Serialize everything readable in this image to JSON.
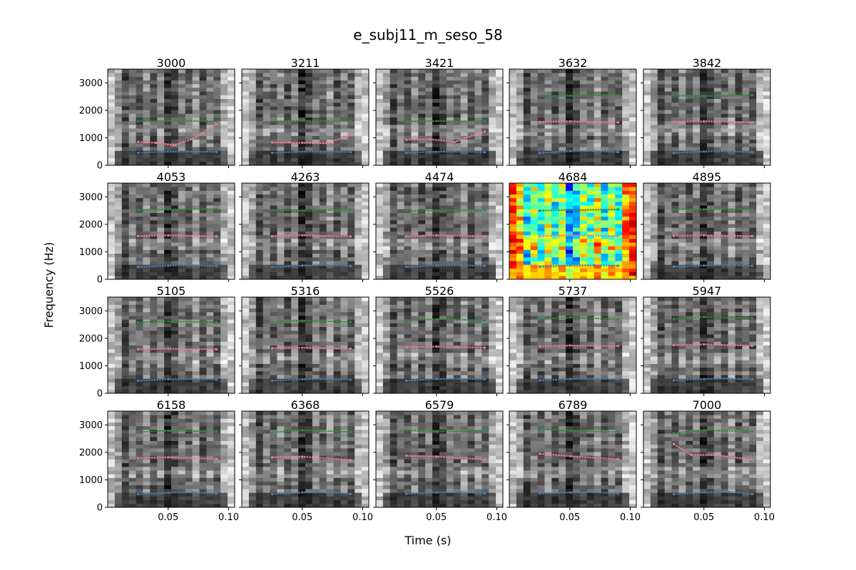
{
  "figure": {
    "title": "e_subj11_m_seso_58"
  },
  "chart_data": {
    "type": "spectrogram-grid",
    "title": "e_subj11_m_seso_58",
    "xlabel": "Time (s)",
    "ylabel": "Frequency (Hz)",
    "xlim": [
      0.0,
      0.105
    ],
    "ylim": [
      0,
      3500
    ],
    "xticks": [
      0.05,
      0.1
    ],
    "xtick_labels": [
      "0.05",
      "0.10"
    ],
    "yticks": [
      0,
      1000,
      2000,
      3000
    ],
    "ytick_labels": [
      "0",
      "1000",
      "2000",
      "3000"
    ],
    "grid": false,
    "rows": 4,
    "cols": 5,
    "highlighted_panel": "4684",
    "colormap_default": "gray",
    "colormap_highlight": "jet",
    "formant_colors": {
      "F1": "#4a7fb5",
      "F2": "#f07a8a",
      "F3": "#2e8b3e"
    },
    "panels": [
      {
        "title": "3000",
        "F1": [
          [
            0.025,
            450
          ],
          [
            0.045,
            490
          ],
          [
            0.065,
            500
          ],
          [
            0.09,
            490
          ]
        ],
        "F2": [
          [
            0.025,
            850
          ],
          [
            0.04,
            820
          ],
          [
            0.055,
            730
          ],
          [
            0.07,
            950
          ],
          [
            0.09,
            1500
          ]
        ],
        "F3": [
          [
            0.025,
            1600
          ],
          [
            0.05,
            1620
          ],
          [
            0.09,
            1600
          ]
        ]
      },
      {
        "title": "3211",
        "F1": [
          [
            0.025,
            450
          ],
          [
            0.045,
            490
          ],
          [
            0.065,
            500
          ],
          [
            0.09,
            480
          ]
        ],
        "F2": [
          [
            0.025,
            830
          ],
          [
            0.05,
            820
          ],
          [
            0.07,
            800
          ],
          [
            0.09,
            1100
          ]
        ],
        "F3": [
          [
            0.025,
            1600
          ],
          [
            0.05,
            1620
          ],
          [
            0.09,
            1610
          ]
        ]
      },
      {
        "title": "3421",
        "F1": [
          [
            0.025,
            450
          ],
          [
            0.045,
            490
          ],
          [
            0.065,
            500
          ],
          [
            0.09,
            480
          ]
        ],
        "F2": [
          [
            0.025,
            930
          ],
          [
            0.045,
            950
          ],
          [
            0.065,
            850
          ],
          [
            0.09,
            1230
          ]
        ],
        "F3": [
          [
            0.025,
            1600
          ],
          [
            0.05,
            1610
          ],
          [
            0.09,
            1600
          ]
        ]
      },
      {
        "title": "3632",
        "F1": [
          [
            0.025,
            450
          ],
          [
            0.05,
            510
          ],
          [
            0.07,
            520
          ],
          [
            0.09,
            480
          ]
        ],
        "F2": [
          [
            0.025,
            1580
          ],
          [
            0.05,
            1600
          ],
          [
            0.09,
            1560
          ]
        ],
        "F3": [
          [
            0.025,
            2520
          ],
          [
            0.05,
            2530
          ],
          [
            0.09,
            2550
          ]
        ]
      },
      {
        "title": "3842",
        "F1": [
          [
            0.025,
            450
          ],
          [
            0.05,
            500
          ],
          [
            0.07,
            510
          ],
          [
            0.09,
            480
          ]
        ],
        "F2": [
          [
            0.025,
            1580
          ],
          [
            0.05,
            1600
          ],
          [
            0.09,
            1560
          ]
        ],
        "F3": [
          [
            0.025,
            2530
          ],
          [
            0.05,
            2520
          ],
          [
            0.09,
            2550
          ]
        ]
      },
      {
        "title": "4053",
        "F1": [
          [
            0.025,
            450
          ],
          [
            0.05,
            500
          ],
          [
            0.07,
            510
          ],
          [
            0.09,
            490
          ]
        ],
        "F2": [
          [
            0.025,
            1570
          ],
          [
            0.05,
            1600
          ],
          [
            0.09,
            1560
          ]
        ],
        "F3": [
          [
            0.025,
            2530
          ],
          [
            0.05,
            2540
          ],
          [
            0.09,
            2560
          ]
        ]
      },
      {
        "title": "4263",
        "F1": [
          [
            0.025,
            450
          ],
          [
            0.05,
            500
          ],
          [
            0.07,
            510
          ],
          [
            0.09,
            490
          ]
        ],
        "F2": [
          [
            0.025,
            1570
          ],
          [
            0.05,
            1600
          ],
          [
            0.09,
            1560
          ]
        ],
        "F3": [
          [
            0.025,
            2520
          ],
          [
            0.05,
            2500
          ],
          [
            0.09,
            2540
          ]
        ]
      },
      {
        "title": "4474",
        "F1": [
          [
            0.025,
            460
          ],
          [
            0.05,
            500
          ],
          [
            0.07,
            510
          ],
          [
            0.09,
            490
          ]
        ],
        "F2": [
          [
            0.025,
            1560
          ],
          [
            0.05,
            1600
          ],
          [
            0.09,
            1560
          ]
        ],
        "F3": [
          [
            0.025,
            2480
          ],
          [
            0.05,
            2500
          ],
          [
            0.09,
            2520
          ]
        ]
      },
      {
        "title": "4684",
        "F1": [
          [
            0.025,
            460
          ],
          [
            0.05,
            500
          ],
          [
            0.07,
            510
          ],
          [
            0.09,
            490
          ]
        ],
        "F2": [
          [
            0.025,
            1570
          ],
          [
            0.05,
            1600
          ],
          [
            0.09,
            1570
          ]
        ],
        "F3": [
          [
            0.025,
            2500
          ],
          [
            0.05,
            2520
          ],
          [
            0.09,
            2540
          ]
        ]
      },
      {
        "title": "4895",
        "F1": [
          [
            0.025,
            460
          ],
          [
            0.05,
            500
          ],
          [
            0.07,
            510
          ],
          [
            0.09,
            490
          ]
        ],
        "F2": [
          [
            0.025,
            1580
          ],
          [
            0.05,
            1600
          ],
          [
            0.09,
            1570
          ]
        ],
        "F3": [
          [
            0.025,
            2540
          ],
          [
            0.05,
            2550
          ],
          [
            0.09,
            2550
          ]
        ]
      },
      {
        "title": "5105",
        "F1": [
          [
            0.025,
            460
          ],
          [
            0.05,
            510
          ],
          [
            0.07,
            520
          ],
          [
            0.09,
            500
          ]
        ],
        "F2": [
          [
            0.025,
            1600
          ],
          [
            0.05,
            1620
          ],
          [
            0.09,
            1600
          ]
        ],
        "F3": [
          [
            0.025,
            2580
          ],
          [
            0.05,
            2620
          ],
          [
            0.09,
            2580
          ]
        ]
      },
      {
        "title": "5316",
        "F1": [
          [
            0.025,
            460
          ],
          [
            0.05,
            510
          ],
          [
            0.07,
            520
          ],
          [
            0.09,
            500
          ]
        ],
        "F2": [
          [
            0.025,
            1640
          ],
          [
            0.05,
            1660
          ],
          [
            0.09,
            1620
          ]
        ],
        "F3": [
          [
            0.025,
            2600
          ],
          [
            0.05,
            2640
          ],
          [
            0.09,
            2600
          ]
        ]
      },
      {
        "title": "5526",
        "F1": [
          [
            0.025,
            460
          ],
          [
            0.05,
            520
          ],
          [
            0.07,
            530
          ],
          [
            0.09,
            510
          ]
        ],
        "F2": [
          [
            0.025,
            1680
          ],
          [
            0.05,
            1700
          ],
          [
            0.09,
            1660
          ]
        ],
        "F3": [
          [
            0.025,
            2650
          ],
          [
            0.05,
            2700
          ],
          [
            0.09,
            2650
          ]
        ]
      },
      {
        "title": "5737",
        "F1": [
          [
            0.025,
            470
          ],
          [
            0.05,
            520
          ],
          [
            0.07,
            530
          ],
          [
            0.09,
            510
          ]
        ],
        "F2": [
          [
            0.025,
            1700
          ],
          [
            0.05,
            1740
          ],
          [
            0.09,
            1720
          ]
        ],
        "F3": [
          [
            0.025,
            2700
          ],
          [
            0.05,
            2760
          ],
          [
            0.09,
            2700
          ]
        ]
      },
      {
        "title": "5947",
        "F1": [
          [
            0.025,
            470
          ],
          [
            0.05,
            520
          ],
          [
            0.07,
            540
          ],
          [
            0.09,
            510
          ]
        ],
        "F2": [
          [
            0.025,
            1750
          ],
          [
            0.05,
            1780
          ],
          [
            0.09,
            1730
          ]
        ],
        "F3": [
          [
            0.025,
            2700
          ],
          [
            0.05,
            2780
          ],
          [
            0.09,
            2730
          ]
        ]
      },
      {
        "title": "6158",
        "F1": [
          [
            0.025,
            480
          ],
          [
            0.05,
            530
          ],
          [
            0.07,
            550
          ],
          [
            0.09,
            500
          ]
        ],
        "F2": [
          [
            0.025,
            1790
          ],
          [
            0.05,
            1820
          ],
          [
            0.09,
            1760
          ]
        ],
        "F3": [
          [
            0.025,
            2740
          ],
          [
            0.05,
            2790
          ],
          [
            0.09,
            2750
          ]
        ]
      },
      {
        "title": "6368",
        "F1": [
          [
            0.025,
            480
          ],
          [
            0.05,
            540
          ],
          [
            0.07,
            550
          ],
          [
            0.09,
            490
          ]
        ],
        "F2": [
          [
            0.025,
            1820
          ],
          [
            0.05,
            1840
          ],
          [
            0.09,
            1720
          ]
        ],
        "F3": [
          [
            0.025,
            2730
          ],
          [
            0.05,
            2800
          ],
          [
            0.09,
            2740
          ]
        ]
      },
      {
        "title": "6579",
        "F1": [
          [
            0.025,
            490
          ],
          [
            0.05,
            540
          ],
          [
            0.07,
            560
          ],
          [
            0.09,
            500
          ]
        ],
        "F2": [
          [
            0.025,
            1880
          ],
          [
            0.05,
            1850
          ],
          [
            0.09,
            1740
          ]
        ],
        "F3": [
          [
            0.025,
            2800
          ],
          [
            0.05,
            2760
          ],
          [
            0.09,
            2760
          ]
        ]
      },
      {
        "title": "6789",
        "F1": [
          [
            0.025,
            500
          ],
          [
            0.05,
            540
          ],
          [
            0.07,
            560
          ],
          [
            0.09,
            500
          ]
        ],
        "F2": [
          [
            0.025,
            1950
          ],
          [
            0.05,
            1860
          ],
          [
            0.09,
            1750
          ]
        ],
        "F3": [
          [
            0.025,
            2850
          ],
          [
            0.05,
            2780
          ],
          [
            0.09,
            2740
          ]
        ]
      },
      {
        "title": "7000",
        "F1": [
          [
            0.025,
            480
          ],
          [
            0.05,
            540
          ],
          [
            0.07,
            570
          ],
          [
            0.09,
            480
          ]
        ],
        "F2": [
          [
            0.025,
            2300
          ],
          [
            0.04,
            1900
          ],
          [
            0.06,
            1900
          ],
          [
            0.09,
            1730
          ]
        ],
        "F3": [
          [
            0.025,
            2700
          ],
          [
            0.05,
            2800
          ],
          [
            0.09,
            2760
          ]
        ]
      }
    ]
  }
}
